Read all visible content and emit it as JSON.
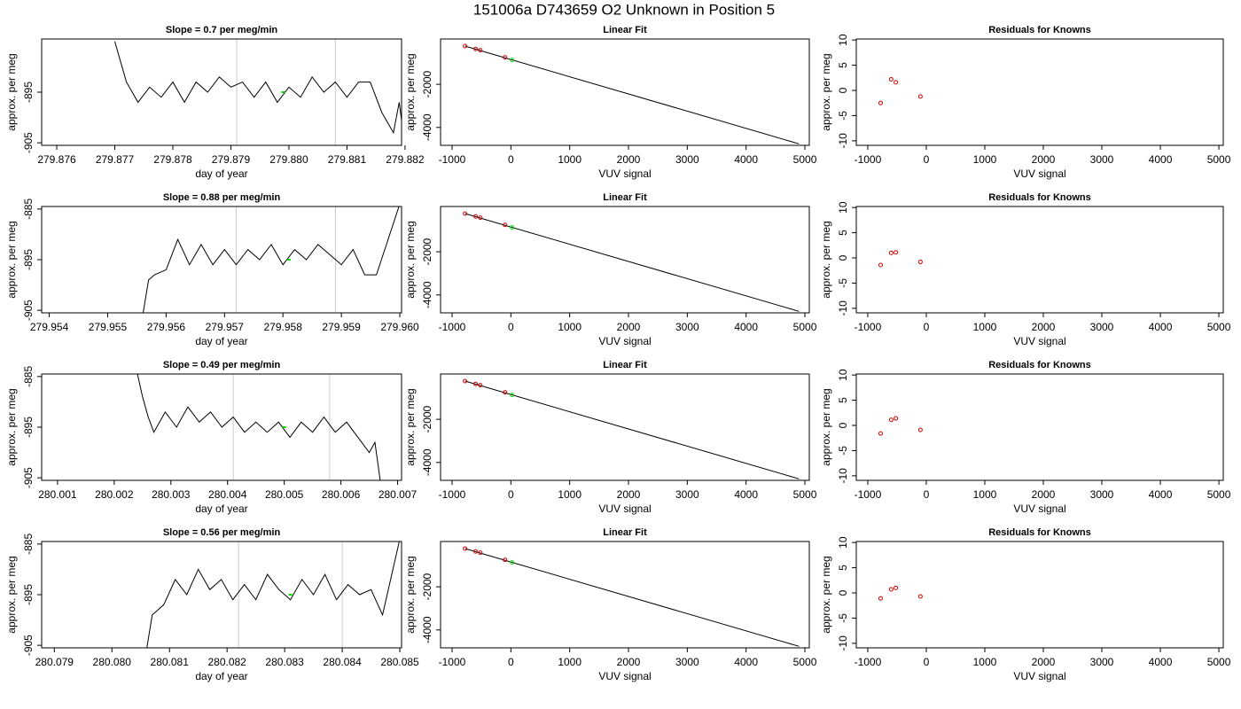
{
  "title": "151006a     D743659   O2 Unknown in Position  5",
  "chart_data": [
    {
      "type": "line",
      "title": "Slope =  0.7  per meg/min",
      "xlabel": "day of year",
      "ylabel": "approx. per meg",
      "x": [
        279.877,
        279.8772,
        279.8774,
        279.8776,
        279.8778,
        279.878,
        279.8782,
        279.8784,
        279.8786,
        279.8788,
        279.879,
        279.8792,
        279.8794,
        279.8796,
        279.8798,
        279.88,
        279.8802,
        279.8804,
        279.8806,
        279.8808,
        279.881,
        279.8812,
        279.8814,
        279.8816,
        279.8818,
        279.8819,
        279.882
      ],
      "values": [
        -885,
        -893,
        -897,
        -894,
        -896,
        -893,
        -897,
        -893,
        -895,
        -892,
        -894,
        -893,
        -896,
        -893,
        -897,
        -894,
        -896,
        -892,
        -895,
        -893,
        -896,
        -893,
        -893,
        -899,
        -903,
        -897,
        -906
      ],
      "color": "#000000",
      "xlim": [
        279.87574,
        279.88194
      ],
      "ylim": [
        -905.5,
        -884.5
      ],
      "xticks": [
        279.876,
        279.877,
        279.878,
        279.879,
        {
          "value": 279.88,
          "label": "279.880"
        },
        279.881,
        279.882
      ],
      "yticks": [
        -905,
        -895
      ],
      "vlines": [
        279.8791,
        279.8808
      ],
      "vline_color": "#cccccc",
      "highlight": {
        "x": 279.8799,
        "y": -895,
        "color": "#00dd00"
      }
    },
    {
      "type": "fit",
      "title": "Linear Fit",
      "xlabel": "VUV signal",
      "ylabel": "approx. per meg",
      "x": [
        -780,
        -600,
        -520,
        -100
      ],
      "values": [
        -230,
        -360,
        -420,
        -750
      ],
      "color": "#cc0000",
      "highlight": {
        "x": 20,
        "y": -870,
        "color": "#00dd00"
      },
      "fit": {
        "x": [
          -780,
          4900
        ],
        "values": [
          -230,
          -4760
        ],
        "color": "#000000"
      },
      "xlim": [
        -1196,
        5075
      ],
      "ylim": [
        -4830,
        100
      ],
      "xticks": [
        -1000,
        0,
        1000,
        2000,
        3000,
        4000,
        5000
      ],
      "yticks": [
        -4000,
        -2000
      ]
    },
    {
      "type": "scatter",
      "title": "Residuals for Knowns",
      "xlabel": "VUV signal",
      "ylabel": "approx. per meg",
      "x": [
        -780,
        -600,
        -520,
        -100
      ],
      "values": [
        -2.5,
        2.2,
        1.6,
        -1.2
      ],
      "color": "#cc0000",
      "xlim": [
        -1196,
        5075
      ],
      "ylim": [
        -10.9,
        10.2
      ],
      "xticks": [
        -1000,
        0,
        1000,
        2000,
        3000,
        4000,
        5000
      ],
      "yticks": [
        -10,
        -5,
        0,
        5,
        10
      ]
    },
    {
      "type": "line",
      "title": "Slope =  0.88  per meg/min",
      "xlabel": "day of year",
      "ylabel": "approx. per meg",
      "x": [
        279.9556,
        279.9557,
        279.9558,
        279.956,
        279.9562,
        279.9564,
        279.9566,
        279.9568,
        279.957,
        279.9572,
        279.9574,
        279.9576,
        279.9578,
        279.958,
        279.9582,
        279.9584,
        279.9586,
        279.9588,
        279.959,
        279.9592,
        279.9594,
        279.9596,
        279.9598,
        279.96
      ],
      "values": [
        -906,
        -899,
        -898,
        -897,
        -891,
        -896,
        -892,
        -896,
        -893,
        -896,
        -893,
        -895,
        -892,
        -896,
        -893,
        -895,
        -892,
        -894,
        -896,
        -893,
        -898,
        -898,
        -891,
        -884
      ],
      "color": "#000000",
      "xlim": [
        279.95387,
        279.96003
      ],
      "ylim": [
        -905.5,
        -884.5
      ],
      "xticks": [
        279.954,
        279.955,
        279.956,
        279.957,
        279.958,
        279.959,
        {
          "value": 279.96,
          "label": "279.960"
        }
      ],
      "yticks": [
        -905,
        -895,
        -885
      ],
      "vlines": [
        279.9572,
        279.9589
      ],
      "vline_color": "#cccccc",
      "highlight": {
        "x": 279.9581,
        "y": -895,
        "color": "#00dd00"
      }
    },
    {
      "type": "fit",
      "title": "Linear Fit",
      "xlabel": "VUV signal",
      "ylabel": "approx. per meg",
      "x": [
        -780,
        -600,
        -520,
        -100
      ],
      "values": [
        -230,
        -360,
        -420,
        -750
      ],
      "color": "#cc0000",
      "highlight": {
        "x": 20,
        "y": -870,
        "color": "#00dd00"
      },
      "fit": {
        "x": [
          -780,
          4900
        ],
        "values": [
          -230,
          -4760
        ],
        "color": "#000000"
      },
      "xlim": [
        -1196,
        5075
      ],
      "ylim": [
        -4830,
        100
      ],
      "xticks": [
        -1000,
        0,
        1000,
        2000,
        3000,
        4000,
        5000
      ],
      "yticks": [
        -4000,
        -2000
      ]
    },
    {
      "type": "scatter",
      "title": "Residuals for Knowns",
      "xlabel": "VUV signal",
      "ylabel": "approx. per meg",
      "x": [
        -780,
        -600,
        -520,
        -100
      ],
      "values": [
        -1.4,
        1,
        1.1,
        -0.8
      ],
      "color": "#cc0000",
      "xlim": [
        -1196,
        5075
      ],
      "ylim": [
        -10.9,
        10.2
      ],
      "xticks": [
        -1000,
        0,
        1000,
        2000,
        3000,
        4000,
        5000
      ],
      "yticks": [
        -10,
        -5,
        0,
        5,
        10
      ]
    },
    {
      "type": "line",
      "title": "Slope =  0.49  per meg/min",
      "xlabel": "day of year",
      "ylabel": "approx. per meg",
      "x": [
        280.0024,
        280.0025,
        280.0026,
        280.0027,
        280.0029,
        280.0031,
        280.0033,
        280.0035,
        280.0037,
        280.0039,
        280.0041,
        280.0043,
        280.0045,
        280.0047,
        280.0049,
        280.0051,
        280.0053,
        280.0055,
        280.0057,
        280.0059,
        280.0061,
        280.0063,
        280.0065,
        280.0066,
        280.0067
      ],
      "values": [
        -884,
        -889,
        -893,
        -896,
        -892,
        -895,
        -891,
        -894,
        -892,
        -895,
        -893,
        -896,
        -894,
        -896,
        -894,
        -897,
        -894,
        -896,
        -893,
        -896,
        -894,
        -897,
        -900,
        -898,
        -906
      ],
      "color": "#000000",
      "xlim": [
        280.00072,
        280.00707
      ],
      "ylim": [
        -905.5,
        -884.5
      ],
      "xticks": [
        280.001,
        280.002,
        280.003,
        280.004,
        280.005,
        280.006,
        280.007
      ],
      "yticks": [
        -905,
        -895,
        -885
      ],
      "vlines": [
        280.0041,
        280.0058
      ],
      "vline_color": "#cccccc",
      "highlight": {
        "x": 280.005,
        "y": -895,
        "color": "#00dd00"
      }
    },
    {
      "type": "fit",
      "title": "Linear Fit",
      "xlabel": "VUV signal",
      "ylabel": "approx. per meg",
      "x": [
        -780,
        -600,
        -520,
        -100
      ],
      "values": [
        -230,
        -360,
        -420,
        -750
      ],
      "color": "#cc0000",
      "highlight": {
        "x": 20,
        "y": -870,
        "color": "#00dd00"
      },
      "fit": {
        "x": [
          -780,
          4900
        ],
        "values": [
          -230,
          -4760
        ],
        "color": "#000000"
      },
      "xlim": [
        -1196,
        5075
      ],
      "ylim": [
        -4830,
        100
      ],
      "xticks": [
        -1000,
        0,
        1000,
        2000,
        3000,
        4000,
        5000
      ],
      "yticks": [
        -4000,
        -2000
      ]
    },
    {
      "type": "scatter",
      "title": "Residuals for Knowns",
      "xlabel": "VUV signal",
      "ylabel": "approx. per meg",
      "x": [
        -780,
        -600,
        -520,
        -100
      ],
      "values": [
        -1.6,
        1.1,
        1.4,
        -0.9
      ],
      "color": "#cc0000",
      "xlim": [
        -1196,
        5075
      ],
      "ylim": [
        -10.9,
        10.2
      ],
      "xticks": [
        -1000,
        0,
        1000,
        2000,
        3000,
        4000,
        5000
      ],
      "yticks": [
        -10,
        -5,
        0,
        5,
        10
      ]
    },
    {
      "type": "line",
      "title": "Slope =  0.56  per meg/min",
      "xlabel": "day of year",
      "ylabel": "approx. per meg",
      "x": [
        280.0806,
        280.0807,
        280.0809,
        280.0811,
        280.0813,
        280.0815,
        280.0817,
        280.0819,
        280.0821,
        280.0823,
        280.0825,
        280.0827,
        280.0829,
        280.0831,
        280.0833,
        280.0835,
        280.0837,
        280.0839,
        280.0841,
        280.0843,
        280.0845,
        280.0847,
        280.0848,
        280.085
      ],
      "values": [
        -906,
        -899,
        -897,
        -892,
        -895,
        -890,
        -894,
        -892,
        -896,
        -893,
        -896,
        -891,
        -894,
        -896,
        -892,
        -895,
        -891,
        -896,
        -893,
        -895,
        -894,
        -899,
        -894,
        -884
      ],
      "color": "#000000",
      "xlim": [
        280.07878,
        280.08503
      ],
      "ylim": [
        -905.5,
        -884.5
      ],
      "xticks": [
        280.079,
        {
          "value": 280.08,
          "label": "280.080"
        },
        280.081,
        280.082,
        280.083,
        280.084,
        280.085
      ],
      "yticks": [
        -905,
        -895,
        -885
      ],
      "vlines": [
        280.0822,
        280.084
      ],
      "vline_color": "#cccccc",
      "highlight": {
        "x": 280.0831,
        "y": -895,
        "color": "#00dd00"
      }
    },
    {
      "type": "fit",
      "title": "Linear Fit",
      "xlabel": "VUV signal",
      "ylabel": "approx. per meg",
      "x": [
        -780,
        -600,
        -520,
        -100
      ],
      "values": [
        -230,
        -360,
        -420,
        -750
      ],
      "color": "#cc0000",
      "highlight": {
        "x": 20,
        "y": -870,
        "color": "#00dd00"
      },
      "fit": {
        "x": [
          -780,
          4900
        ],
        "values": [
          -230,
          -4760
        ],
        "color": "#000000"
      },
      "xlim": [
        -1196,
        5075
      ],
      "ylim": [
        -4830,
        100
      ],
      "xticks": [
        -1000,
        0,
        1000,
        2000,
        3000,
        4000,
        5000
      ],
      "yticks": [
        -4000,
        -2000
      ]
    },
    {
      "type": "scatter",
      "title": "Residuals for Knowns",
      "xlabel": "VUV signal",
      "ylabel": "approx. per meg",
      "x": [
        -780,
        -600,
        -520,
        -100
      ],
      "values": [
        -1.1,
        0.7,
        1.0,
        -0.7
      ],
      "color": "#cc0000",
      "xlim": [
        -1196,
        5075
      ],
      "ylim": [
        -10.9,
        10.2
      ],
      "xticks": [
        -1000,
        0,
        1000,
        2000,
        3000,
        4000,
        5000
      ],
      "yticks": [
        -10,
        -5,
        0,
        5,
        10
      ]
    }
  ]
}
